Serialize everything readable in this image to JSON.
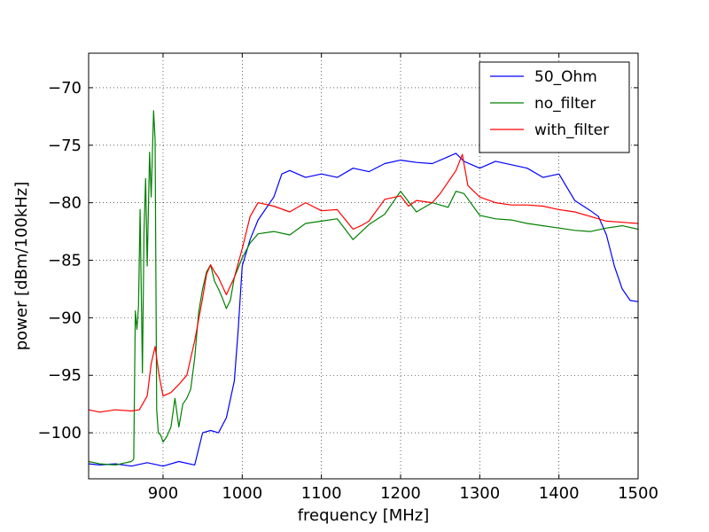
{
  "chart_data": {
    "type": "line",
    "title": "",
    "xlabel": "frequency [MHz]",
    "ylabel": "power [dBm/100kHz]",
    "xlim": [
      806,
      1500
    ],
    "ylim": [
      -104,
      -67
    ],
    "xticks": [
      900,
      1000,
      1100,
      1200,
      1300,
      1400,
      1500
    ],
    "xtick_labels": [
      "900",
      "1000",
      "1100",
      "1200",
      "1300",
      "1400",
      "1500"
    ],
    "yticks": [
      -70,
      -75,
      -80,
      -85,
      -90,
      -95,
      -100
    ],
    "ytick_labels": [
      "−70",
      "−75",
      "−80",
      "−85",
      "−90",
      "−95",
      "−100"
    ],
    "grid": true,
    "legend": "top-right",
    "series": [
      {
        "name": "50_Ohm",
        "color": "#0000ff",
        "x": [
          806,
          820,
          840,
          860,
          880,
          900,
          920,
          940,
          950,
          960,
          970,
          980,
          990,
          995,
          1000,
          1010,
          1020,
          1040,
          1050,
          1060,
          1080,
          1100,
          1120,
          1140,
          1160,
          1180,
          1200,
          1220,
          1240,
          1260,
          1270,
          1280,
          1300,
          1320,
          1340,
          1360,
          1380,
          1400,
          1420,
          1440,
          1450,
          1460,
          1470,
          1480,
          1490,
          1500
        ],
        "y": [
          -102.7,
          -102.8,
          -102.7,
          -102.9,
          -102.6,
          -102.9,
          -102.5,
          -102.8,
          -100.0,
          -99.8,
          -100.0,
          -98.7,
          -95.5,
          -91.0,
          -85.5,
          -83.2,
          -81.5,
          -79.5,
          -77.5,
          -77.2,
          -77.8,
          -77.5,
          -77.8,
          -77.0,
          -77.3,
          -76.6,
          -76.3,
          -76.5,
          -76.6,
          -76.0,
          -75.7,
          -76.4,
          -77.0,
          -76.4,
          -76.7,
          -77.0,
          -77.8,
          -77.5,
          -79.8,
          -80.7,
          -81.2,
          -82.8,
          -85.5,
          -87.5,
          -88.5,
          -88.6
        ]
      },
      {
        "name": "no_filter",
        "color": "#008000",
        "x": [
          806,
          820,
          840,
          860,
          863,
          865,
          867,
          869,
          871,
          874,
          876,
          878,
          880,
          883,
          885,
          888,
          890,
          892,
          894,
          897,
          900,
          905,
          910,
          915,
          920,
          925,
          930,
          935,
          940,
          945,
          950,
          955,
          960,
          965,
          970,
          975,
          980,
          985,
          990,
          1000,
          1010,
          1020,
          1040,
          1060,
          1080,
          1100,
          1120,
          1140,
          1160,
          1180,
          1200,
          1220,
          1240,
          1260,
          1270,
          1280,
          1300,
          1320,
          1340,
          1360,
          1380,
          1400,
          1420,
          1440,
          1460,
          1480,
          1500
        ],
        "y": [
          -102.5,
          -102.7,
          -102.8,
          -102.5,
          -102.3,
          -89.4,
          -91.0,
          -89.0,
          -80.6,
          -94.8,
          -82.5,
          -77.9,
          -85.5,
          -75.6,
          -79.5,
          -72.0,
          -74.5,
          -98.0,
          -100.0,
          -100.2,
          -100.8,
          -100.3,
          -99.5,
          -97.0,
          -99.5,
          -97.5,
          -97.0,
          -96.2,
          -93.5,
          -89.5,
          -87.5,
          -86.0,
          -85.4,
          -86.8,
          -87.5,
          -88.3,
          -89.2,
          -88.5,
          -86.5,
          -84.8,
          -83.5,
          -82.7,
          -82.5,
          -82.8,
          -81.8,
          -81.6,
          -81.4,
          -83.2,
          -81.9,
          -81.0,
          -79.0,
          -80.8,
          -80.0,
          -80.4,
          -79.0,
          -79.2,
          -81.1,
          -81.4,
          -81.5,
          -81.8,
          -82.0,
          -82.2,
          -82.4,
          -82.5,
          -82.2,
          -82.0,
          -82.3
        ]
      },
      {
        "name": "with_filter",
        "color": "#ff0000",
        "x": [
          806,
          820,
          840,
          860,
          870,
          880,
          885,
          890,
          895,
          900,
          910,
          920,
          930,
          940,
          950,
          955,
          960,
          965,
          970,
          980,
          990,
          1000,
          1010,
          1020,
          1040,
          1060,
          1080,
          1100,
          1120,
          1140,
          1150,
          1160,
          1180,
          1200,
          1210,
          1220,
          1240,
          1250,
          1260,
          1270,
          1278,
          1285,
          1300,
          1320,
          1340,
          1360,
          1380,
          1400,
          1420,
          1440,
          1460,
          1480,
          1500
        ],
        "y": [
          -98.0,
          -98.2,
          -98.0,
          -98.1,
          -98.0,
          -96.8,
          -94.0,
          -92.5,
          -95.0,
          -96.8,
          -96.5,
          -95.8,
          -95.0,
          -92.0,
          -88.3,
          -86.2,
          -85.4,
          -86.0,
          -86.5,
          -88.0,
          -86.5,
          -84.0,
          -81.2,
          -80.0,
          -80.3,
          -80.8,
          -80.0,
          -80.7,
          -80.6,
          -82.3,
          -82.0,
          -81.6,
          -79.7,
          -79.4,
          -80.3,
          -79.8,
          -80.0,
          -79.2,
          -78.2,
          -77.2,
          -75.8,
          -78.5,
          -79.5,
          -80.0,
          -80.2,
          -80.2,
          -80.3,
          -80.6,
          -80.8,
          -81.2,
          -81.6,
          -81.7,
          -81.8
        ]
      }
    ]
  }
}
